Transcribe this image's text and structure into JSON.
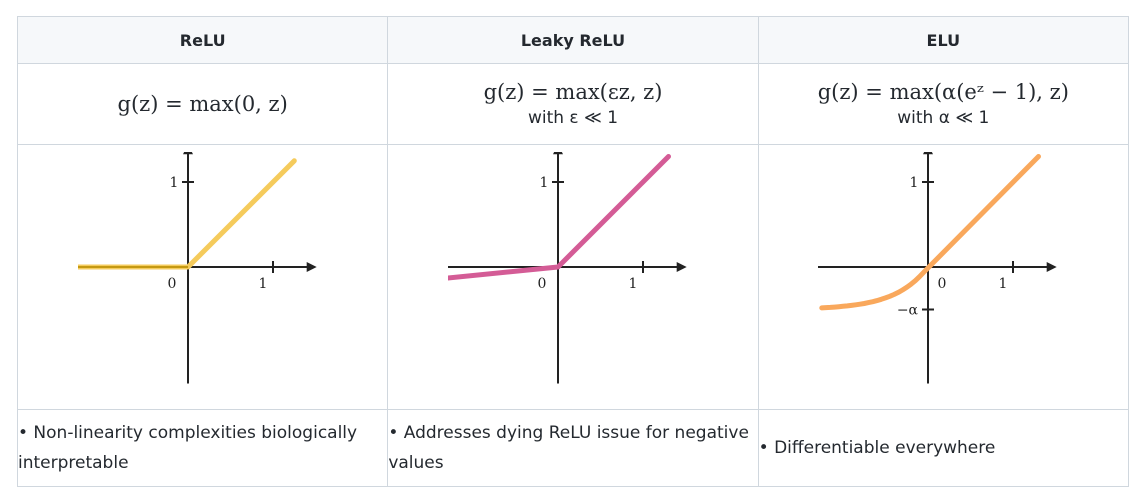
{
  "columns": [
    {
      "header": "ReLU",
      "formula": "g(z) = max(0, z)",
      "condition": "",
      "note": "• Non-linearity complexities biologically interpretable",
      "curve_color": "#f5cb5c",
      "tick_labels": {
        "x_one": "1",
        "y_one": "1",
        "origin": "0"
      }
    },
    {
      "header": "Leaky ReLU",
      "formula": "g(z) = max(εz, z)",
      "condition": "with ε ≪ 1",
      "note": "• Addresses dying ReLU issue for negative values",
      "curve_color": "#d45c96",
      "tick_labels": {
        "x_one": "1",
        "y_one": "1",
        "origin": "0"
      }
    },
    {
      "header": "ELU",
      "formula": "g(z) = max(α(eᶻ − 1), z)",
      "condition": "with α ≪ 1",
      "note": "• Differentiable everywhere",
      "curve_color": "#f9a85c",
      "tick_labels": {
        "x_one": "1",
        "y_one": "1",
        "origin": "0",
        "neg_alpha": "−α"
      }
    }
  ],
  "chart_data": [
    {
      "type": "line",
      "title": "ReLU",
      "series": [
        {
          "x": [
            -1.4,
            0,
            1.4
          ],
          "y": [
            0,
            0,
            1.4
          ]
        }
      ]
    },
    {
      "type": "line",
      "title": "Leaky ReLU",
      "series": [
        {
          "x": [
            -1.4,
            0,
            1.4
          ],
          "y": [
            -0.14,
            0,
            1.4
          ]
        }
      ]
    },
    {
      "type": "line",
      "title": "ELU",
      "series": [
        {
          "x": [
            -1.4,
            -0.8,
            -0.4,
            0,
            1.4
          ],
          "y": [
            -0.5,
            -0.43,
            -0.32,
            0,
            1.4
          ]
        }
      ]
    }
  ]
}
